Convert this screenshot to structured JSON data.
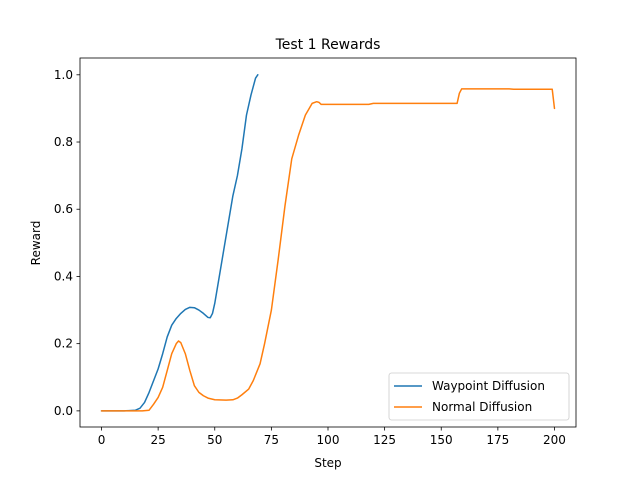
{
  "chart_data": {
    "type": "line",
    "title": "Test 1 Rewards",
    "xlabel": "Step",
    "ylabel": "Reward",
    "xlim": [
      -9.5,
      209.5
    ],
    "ylim": [
      -0.048,
      1.05
    ],
    "x_ticks": [
      0,
      25,
      50,
      75,
      100,
      125,
      150,
      175,
      200
    ],
    "x_tick_labels": [
      "0",
      "25",
      "50",
      "75",
      "100",
      "125",
      "150",
      "175",
      "200"
    ],
    "y_ticks": [
      0.0,
      0.2,
      0.4,
      0.6,
      0.8,
      1.0
    ],
    "y_tick_labels": [
      "0.0",
      "0.2",
      "0.4",
      "0.6",
      "0.8",
      "1.0"
    ],
    "grid": false,
    "legend": {
      "placement": "lower right",
      "entries": [
        "Waypoint Diffusion",
        "Normal Diffusion"
      ]
    },
    "series": [
      {
        "name": "Waypoint Diffusion",
        "color": "#1f77b4",
        "x": [
          0,
          5,
          10,
          15,
          17,
          19,
          21,
          23,
          25,
          27,
          29,
          31,
          33,
          35,
          37,
          39,
          41,
          43,
          45,
          47,
          48,
          49,
          50,
          52,
          54,
          56,
          58,
          60,
          62,
          64,
          66,
          68,
          69
        ],
        "y": [
          0.0,
          0.0,
          0.0,
          0.002,
          0.008,
          0.025,
          0.055,
          0.09,
          0.125,
          0.17,
          0.22,
          0.255,
          0.275,
          0.29,
          0.302,
          0.308,
          0.307,
          0.3,
          0.29,
          0.278,
          0.277,
          0.29,
          0.32,
          0.4,
          0.48,
          0.56,
          0.64,
          0.7,
          0.78,
          0.88,
          0.94,
          0.99,
          1.0
        ]
      },
      {
        "name": "Normal Diffusion",
        "color": "#ff7f0e",
        "x": [
          0,
          5,
          10,
          15,
          18,
          21,
          23,
          25,
          27,
          29,
          31,
          33,
          34,
          35,
          37,
          39,
          41,
          43,
          45,
          47,
          50,
          55,
          58,
          60,
          62,
          65,
          67,
          70,
          72,
          75,
          78,
          81,
          84,
          87,
          90,
          93,
          95,
          96,
          97,
          100,
          105,
          110,
          115,
          118,
          120,
          125,
          130,
          140,
          150,
          157,
          158,
          159,
          160,
          170,
          180,
          182,
          190,
          199,
          200
        ],
        "y": [
          0.0,
          0.0,
          0.0,
          0.0,
          0.0,
          0.002,
          0.02,
          0.04,
          0.07,
          0.12,
          0.17,
          0.2,
          0.208,
          0.203,
          0.17,
          0.12,
          0.075,
          0.055,
          0.045,
          0.038,
          0.033,
          0.032,
          0.033,
          0.038,
          0.048,
          0.065,
          0.09,
          0.14,
          0.2,
          0.3,
          0.45,
          0.61,
          0.75,
          0.82,
          0.88,
          0.915,
          0.92,
          0.918,
          0.912,
          0.912,
          0.912,
          0.912,
          0.912,
          0.912,
          0.915,
          0.915,
          0.915,
          0.915,
          0.915,
          0.915,
          0.945,
          0.958,
          0.958,
          0.958,
          0.958,
          0.957,
          0.957,
          0.957,
          0.9
        ]
      }
    ]
  }
}
